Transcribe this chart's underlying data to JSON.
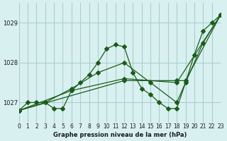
{
  "title": "Graphe pression niveau de la mer (hPa)",
  "background_color": "#d9f0f0",
  "grid_color": "#aacfcf",
  "line_color": "#1a5c1a",
  "xlim": [
    0,
    23
  ],
  "ylim": [
    1026.5,
    1029.5
  ],
  "xticks": [
    0,
    1,
    2,
    3,
    4,
    5,
    6,
    7,
    8,
    9,
    10,
    11,
    12,
    13,
    14,
    15,
    16,
    17,
    18,
    19,
    20,
    21,
    22,
    23
  ],
  "yticks": [
    1027,
    1028,
    1029
  ],
  "series": [
    {
      "x": [
        0,
        1,
        2,
        3,
        4,
        5,
        6,
        7,
        8,
        9,
        10,
        11,
        12,
        13,
        14,
        15,
        16,
        17,
        18,
        19,
        20,
        21,
        22,
        23
      ],
      "y": [
        1026.8,
        1027.0,
        1027.0,
        1027.0,
        1026.85,
        1026.85,
        1027.3,
        1027.5,
        1027.7,
        1028.0,
        1028.35,
        1028.45,
        1028.4,
        1027.75,
        1027.35,
        1027.2,
        1027.0,
        1026.85,
        1026.85,
        1027.5,
        1028.2,
        1028.8,
        1029.0,
        1029.2
      ]
    },
    {
      "x": [
        0,
        3,
        6,
        9,
        12,
        15,
        18,
        21,
        23
      ],
      "y": [
        1026.8,
        1027.0,
        1027.35,
        1027.75,
        1028.0,
        1027.5,
        1027.0,
        1028.5,
        1029.2
      ]
    },
    {
      "x": [
        0,
        6,
        12,
        18,
        23
      ],
      "y": [
        1026.8,
        1027.3,
        1027.6,
        1027.5,
        1029.2
      ]
    },
    {
      "x": [
        0,
        12,
        18,
        19,
        23
      ],
      "y": [
        1026.8,
        1027.55,
        1027.55,
        1027.55,
        1029.2
      ]
    }
  ]
}
